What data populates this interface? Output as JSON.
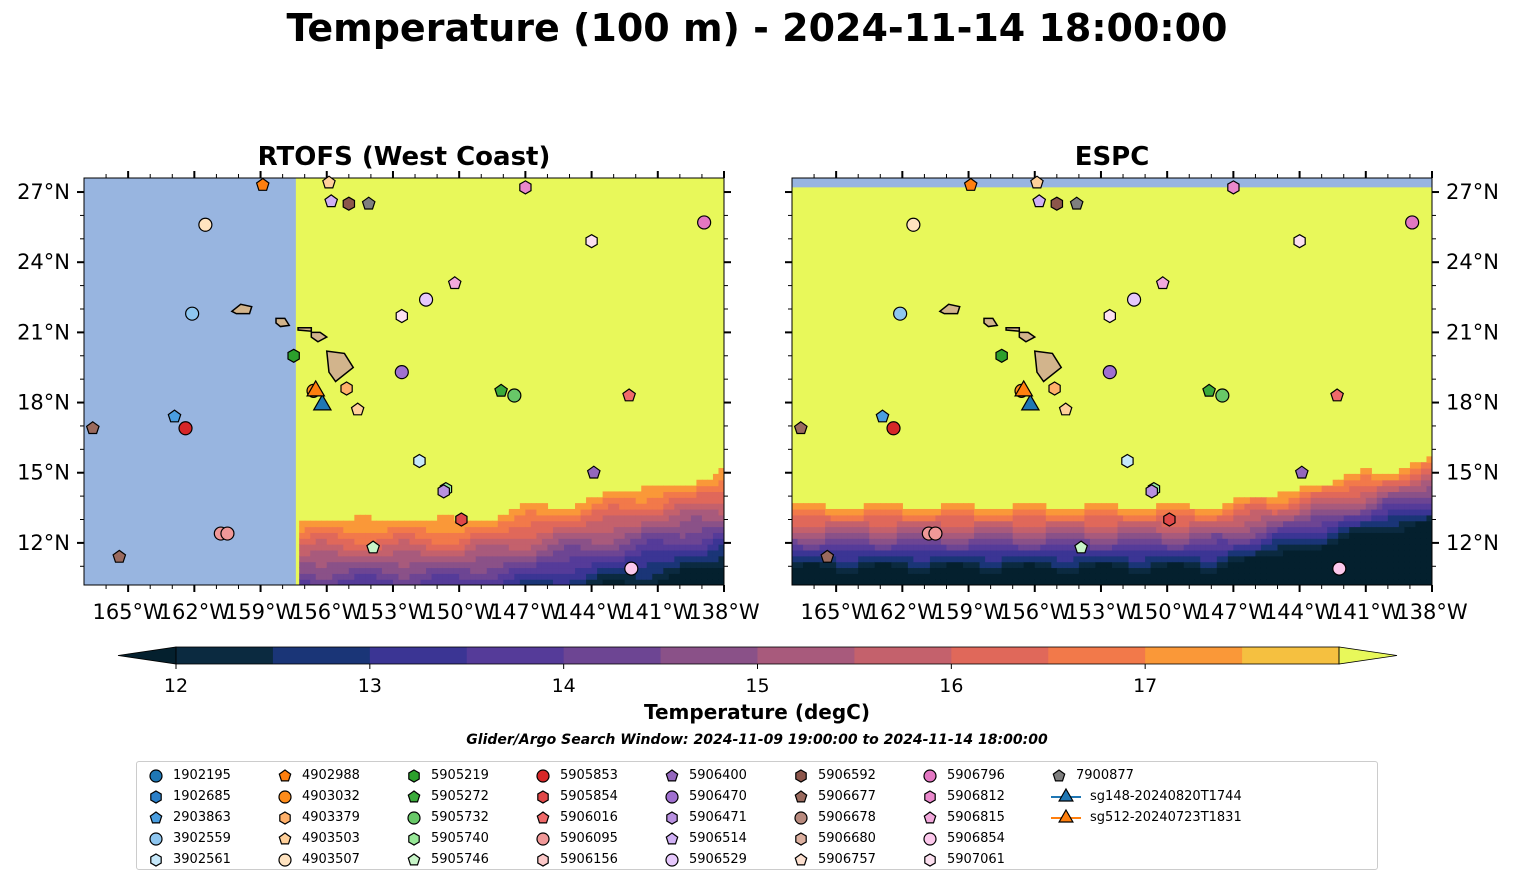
{
  "title": "Temperature (100 m) - 2024-11-14 18:00:00",
  "panels": [
    {
      "title": "RTOFS (West Coast)"
    },
    {
      "title": "ESPC"
    }
  ],
  "colors": {
    "land_mask": "#98b5e0",
    "warm_field": "#e8f85a",
    "land": "#d2b48c"
  },
  "chart_data": {
    "type": "heatmap",
    "x_axis": {
      "range": [
        -167,
        -138
      ],
      "ticks": [
        "165°W",
        "162°W",
        "159°W",
        "156°W",
        "153°W",
        "150°W",
        "147°W",
        "144°W",
        "141°W",
        "138°W"
      ],
      "tick_values": [
        -165,
        -162,
        -159,
        -156,
        -153,
        -150,
        -147,
        -144,
        -141,
        -138
      ]
    },
    "y_axis": {
      "range": [
        10.2,
        27.6
      ],
      "ticks": [
        "12°N",
        "15°N",
        "18°N",
        "21°N",
        "24°N",
        "27°N"
      ],
      "tick_values": [
        12,
        15,
        18,
        21,
        24,
        27
      ]
    },
    "colorbar": {
      "label": "Temperature (degC)",
      "ticks": [
        "12",
        "13",
        "14",
        "15",
        "16",
        "17"
      ],
      "tick_values": [
        12,
        13,
        14,
        15,
        16,
        17
      ],
      "levels": [
        12,
        12.5,
        13,
        13.5,
        14,
        14.5,
        15,
        15.5,
        16,
        16.5,
        17,
        17.5
      ],
      "colors": [
        "#0b2a40",
        "#1a3577",
        "#3b3594",
        "#553b99",
        "#6d4593",
        "#8a5188",
        "#a85a7c",
        "#c4616c",
        "#e0685a",
        "#f2794a",
        "#fa9838",
        "#f5c040"
      ],
      "extend_low": "#04202e",
      "extend_high": "#e8f85a"
    },
    "search_window": "Glider/Argo Search Window: 2024-11-09 19:00:00 to 2024-11-14 18:00:00",
    "series": [
      {
        "name": "1902195",
        "marker": "circle",
        "color": "#1f77b4"
      },
      {
        "name": "1902685",
        "marker": "hexagon",
        "color": "#2a7fc8"
      },
      {
        "name": "2903863",
        "marker": "pentagon",
        "color": "#4a9ee0",
        "points": [
          [
            -162.9,
            17.4
          ]
        ]
      },
      {
        "name": "3902559",
        "marker": "circle",
        "color": "#8ec6f0",
        "points": [
          [
            -162.1,
            21.8
          ]
        ]
      },
      {
        "name": "3902561",
        "marker": "hexagon",
        "color": "#c6e8fa",
        "points": [
          [
            -151.8,
            15.5
          ]
        ]
      },
      {
        "name": "4902988",
        "marker": "pentagon",
        "color": "#ff7f0e",
        "points": [
          [
            -158.9,
            27.3
          ]
        ]
      },
      {
        "name": "4903032",
        "marker": "circle",
        "color": "#ff8c1a",
        "points": [
          [
            -156.6,
            18.5
          ]
        ]
      },
      {
        "name": "4903379",
        "marker": "hexagon",
        "color": "#ffb06a",
        "points": [
          [
            -155.1,
            18.6
          ]
        ]
      },
      {
        "name": "4903503",
        "marker": "pentagon",
        "color": "#ffd09a",
        "points": [
          [
            -155.9,
            27.4
          ],
          [
            -154.6,
            17.7
          ]
        ]
      },
      {
        "name": "4903507",
        "marker": "circle",
        "color": "#ffe3c0",
        "points": [
          [
            -161.5,
            25.6
          ]
        ]
      },
      {
        "name": "5905219",
        "marker": "hexagon",
        "color": "#2ca02c",
        "points": [
          [
            -157.5,
            20.0
          ]
        ]
      },
      {
        "name": "5905272",
        "marker": "pentagon",
        "color": "#3aaa3a",
        "points": [
          [
            -148.1,
            18.5
          ]
        ]
      },
      {
        "name": "5905732",
        "marker": "circle",
        "color": "#68c868",
        "points": [
          [
            -147.5,
            18.3
          ]
        ]
      },
      {
        "name": "5905740",
        "marker": "hexagon",
        "color": "#98e898",
        "points": [
          [
            -150.6,
            14.3
          ]
        ]
      },
      {
        "name": "5905746",
        "marker": "pentagon",
        "color": "#c8f5c8",
        "points": [
          [
            -153.9,
            11.8
          ]
        ]
      },
      {
        "name": "5905853",
        "marker": "circle",
        "color": "#d62728",
        "points": [
          [
            -162.4,
            16.9
          ]
        ]
      },
      {
        "name": "5905854",
        "marker": "hexagon",
        "color": "#e04848",
        "points": [
          [
            -149.9,
            13.0
          ]
        ]
      },
      {
        "name": "5906016",
        "marker": "pentagon",
        "color": "#f06a6a",
        "points": [
          [
            -142.3,
            18.3
          ]
        ]
      },
      {
        "name": "5906095",
        "marker": "circle",
        "color": "#f09898",
        "points": [
          [
            -160.8,
            12.4
          ],
          [
            -160.5,
            12.4
          ]
        ]
      },
      {
        "name": "5906156",
        "marker": "hexagon",
        "color": "#fcc8c8"
      },
      {
        "name": "5906400",
        "marker": "pentagon",
        "color": "#9467bd",
        "points": [
          [
            -143.9,
            15.0
          ]
        ]
      },
      {
        "name": "5906470",
        "marker": "circle",
        "color": "#a070d0",
        "points": [
          [
            -152.6,
            19.3
          ]
        ]
      },
      {
        "name": "5906471",
        "marker": "hexagon",
        "color": "#b890e0",
        "points": [
          [
            -150.7,
            14.2
          ]
        ]
      },
      {
        "name": "5906514",
        "marker": "pentagon",
        "color": "#d0b0f5",
        "points": [
          [
            -155.8,
            26.6
          ]
        ]
      },
      {
        "name": "5906529",
        "marker": "circle",
        "color": "#e6c8fc",
        "points": [
          [
            -151.5,
            22.4
          ]
        ]
      },
      {
        "name": "5906592",
        "marker": "hexagon",
        "color": "#8c564b",
        "points": [
          [
            -155.0,
            26.5
          ]
        ]
      },
      {
        "name": "5906677",
        "marker": "pentagon",
        "color": "#9a6a5e",
        "points": [
          [
            -166.6,
            16.9
          ],
          [
            -165.4,
            11.4
          ]
        ]
      },
      {
        "name": "5906678",
        "marker": "circle",
        "color": "#b88a7e"
      },
      {
        "name": "5906680",
        "marker": "hexagon",
        "color": "#dcb0a0"
      },
      {
        "name": "5906757",
        "marker": "pentagon",
        "color": "#fce0d0"
      },
      {
        "name": "5906796",
        "marker": "circle",
        "color": "#e377c2",
        "points": [
          [
            -138.9,
            25.7
          ]
        ]
      },
      {
        "name": "5906812",
        "marker": "hexagon",
        "color": "#ea88cc",
        "points": [
          [
            -147.0,
            27.2
          ]
        ]
      },
      {
        "name": "5906815",
        "marker": "pentagon",
        "color": "#f2a8dc",
        "points": [
          [
            -150.2,
            23.1
          ]
        ]
      },
      {
        "name": "5906854",
        "marker": "circle",
        "color": "#fcc8ec",
        "points": [
          [
            -142.2,
            10.9
          ]
        ]
      },
      {
        "name": "5907061",
        "marker": "hexagon",
        "color": "#fce0f0",
        "points": [
          [
            -144.0,
            24.9
          ],
          [
            -152.6,
            21.7
          ]
        ]
      },
      {
        "name": "7900877",
        "marker": "pentagon",
        "color": "#7f7f7f",
        "points": [
          [
            -154.1,
            26.5
          ]
        ]
      },
      {
        "name": "sg148-20240820T1744",
        "marker": "triangle",
        "color": "#1f77b4",
        "points": [
          [
            -156.2,
            17.9
          ]
        ]
      },
      {
        "name": "sg512-20240723T1831",
        "marker": "triangle",
        "color": "#ff7f0e",
        "points": [
          [
            -156.5,
            18.5
          ]
        ]
      }
    ]
  }
}
